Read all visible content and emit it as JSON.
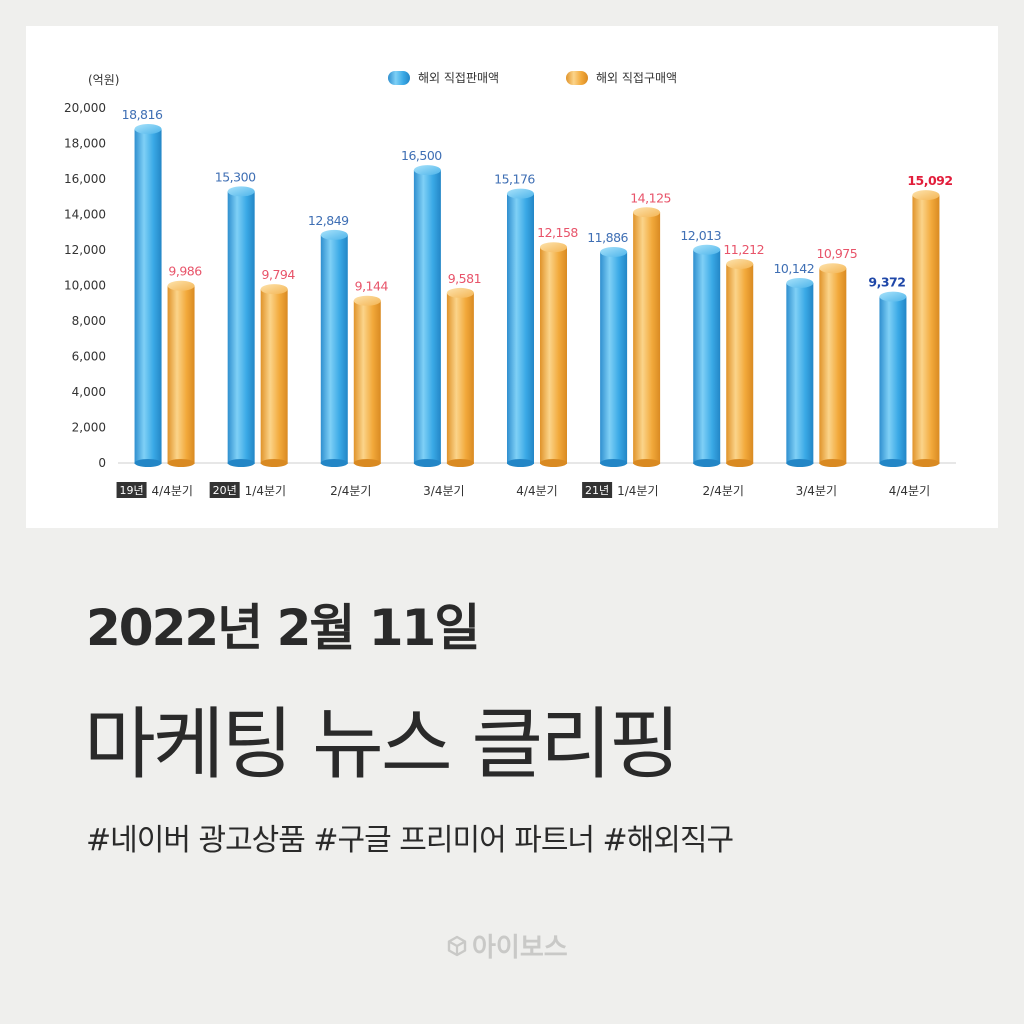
{
  "chart_data": {
    "type": "bar",
    "unit_label": "(억원)",
    "ylim": [
      0,
      20000
    ],
    "yticks": [
      "0",
      "2,000",
      "4,000",
      "6,000",
      "8,000",
      "10,000",
      "12,000",
      "14,000",
      "16,000",
      "18,000",
      "20,000"
    ],
    "legend_position": "top-center",
    "categories": [
      {
        "year_tag": "19년",
        "label": "4/4분기"
      },
      {
        "year_tag": "20년",
        "label": "1/4분기"
      },
      {
        "year_tag": "",
        "label": "2/4분기"
      },
      {
        "year_tag": "",
        "label": "3/4분기"
      },
      {
        "year_tag": "",
        "label": "4/4분기"
      },
      {
        "year_tag": "21년",
        "label": "1/4분기"
      },
      {
        "year_tag": "",
        "label": "2/4분기"
      },
      {
        "year_tag": "",
        "label": "3/4분기"
      },
      {
        "year_tag": "",
        "label": "4/4분기"
      }
    ],
    "series": [
      {
        "name": "해외 직접판매액",
        "color": "#3aa9e6",
        "label_color": "#3f6fb4",
        "highlight_color": "#1f47a8",
        "values": [
          18816,
          15300,
          12849,
          16500,
          15176,
          11886,
          12013,
          10142,
          9372
        ],
        "value_labels": [
          "18,816",
          "15,300",
          "12,849",
          "16,500",
          "15,176",
          "11,886",
          "12,013",
          "10,142",
          "9,372"
        ]
      },
      {
        "name": "해외 직접구매액",
        "color": "#f2a93b",
        "label_color": "#e8546a",
        "highlight_color": "#e21d3b",
        "values": [
          9986,
          9794,
          9144,
          9581,
          12158,
          14125,
          11212,
          10975,
          15092
        ],
        "value_labels": [
          "9,986",
          "9,794",
          "9,144",
          "9,581",
          "12,158",
          "14,125",
          "11,212",
          "10,975",
          "15,092"
        ]
      }
    ]
  },
  "date_text": "2022년 2월 11일",
  "title": "마케팅 뉴스 클리핑",
  "tags": "#네이버 광고상품 #구글 프리미어 파트너 #해외직구",
  "brand": {
    "name": "아이보스",
    "icon": "cube-logo-icon",
    "color": "#c9c9c7"
  }
}
